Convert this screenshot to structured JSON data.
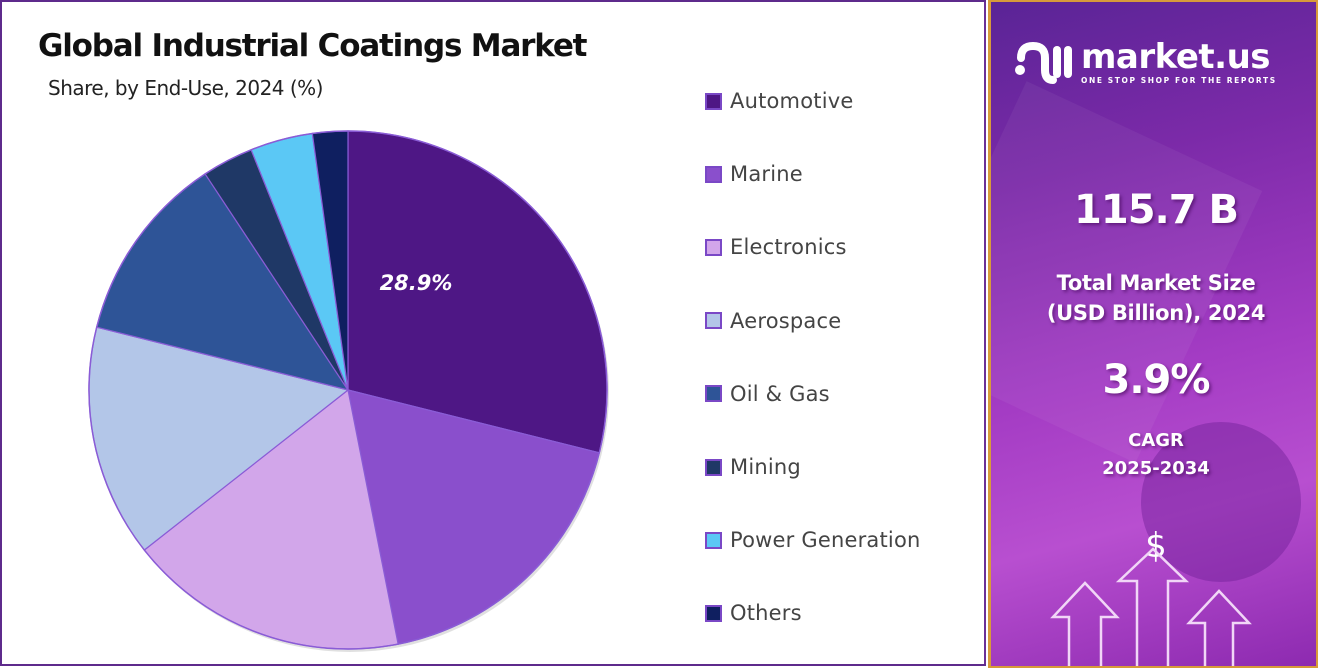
{
  "header": {
    "title": "Global Industrial Coatings Market",
    "subtitle": "Share, by End-Use, 2024 (%)"
  },
  "chart_data": {
    "type": "pie",
    "title": "Global Industrial Coatings Market",
    "subtitle": "Share, by End-Use, 2024 (%)",
    "start_angle": "top (12 o'clock), clockwise",
    "legend_position": "right",
    "slices": [
      {
        "label": "Automotive",
        "value": 28.9,
        "color": "#4e1785",
        "show_label": true,
        "data_label": "28.9%"
      },
      {
        "label": "Marine",
        "value": 18.0,
        "color": "#8a4fcc",
        "show_label": false
      },
      {
        "label": "Electronics",
        "value": 17.5,
        "color": "#d2a6ea",
        "show_label": false
      },
      {
        "label": "Aerospace",
        "value": 14.5,
        "color": "#b3c6e8",
        "show_label": false
      },
      {
        "label": "Oil & Gas",
        "value": 11.8,
        "color": "#2e5497",
        "show_label": false
      },
      {
        "label": "Mining",
        "value": 3.2,
        "color": "#1f3866",
        "show_label": false
      },
      {
        "label": "Power Generation",
        "value": 3.9,
        "color": "#5bc8f5",
        "show_label": false
      },
      {
        "label": "Others",
        "value": 2.2,
        "color": "#0f1f60",
        "show_label": false
      }
    ],
    "slice_border_color": "#8a5cd6"
  },
  "sidebar": {
    "brand": {
      "name": "market.us",
      "tagline": "ONE STOP SHOP FOR THE REPORTS"
    },
    "market_size": {
      "value": "115.7 B",
      "label_line1": "Total Market Size",
      "label_line2": "(USD Billion), 2024"
    },
    "cagr": {
      "value": "3.9%",
      "label_line1": "CAGR",
      "label_line2": "2025-2034"
    },
    "currency_symbol": "$",
    "colors": {
      "gradient_top": "#5a2496",
      "gradient_mid": "#a43cc4",
      "border": "#d79a3a"
    }
  }
}
